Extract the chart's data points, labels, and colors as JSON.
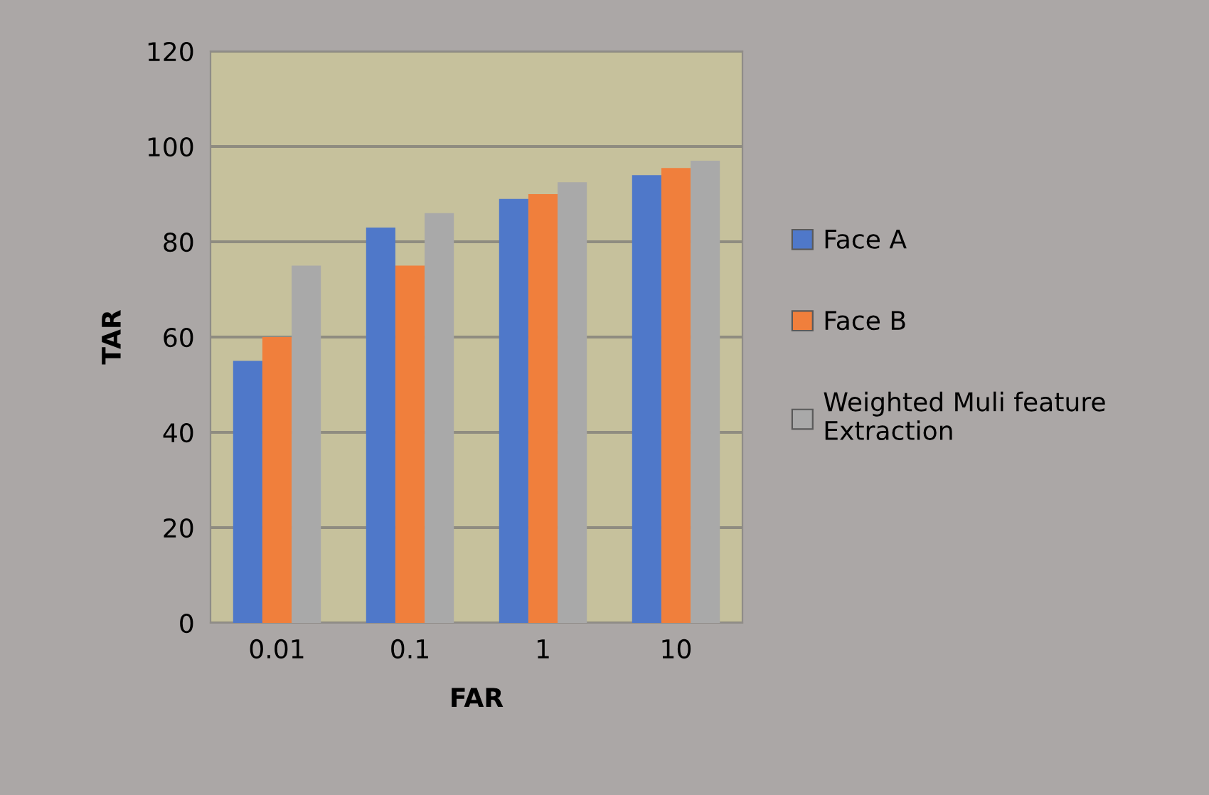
{
  "chart_data": {
    "type": "bar",
    "xlabel": "FAR",
    "ylabel": "TAR",
    "categories": [
      "0.01",
      "0.1",
      "1",
      "10"
    ],
    "series": [
      {
        "name": "Face A",
        "color": "#4f78c9",
        "values": [
          55,
          83,
          89,
          94
        ]
      },
      {
        "name": "Face B",
        "color": "#f07f3c",
        "values": [
          60,
          75,
          90,
          95.5
        ]
      },
      {
        "name": "Weighted Muli feature Extraction",
        "color": "#a9a9a9",
        "values": [
          75,
          86,
          92.5,
          97
        ]
      }
    ],
    "ylim": [
      0,
      120
    ],
    "yticks": [
      0,
      20,
      40,
      60,
      80,
      100,
      120
    ],
    "grid": "y",
    "legend": "right"
  }
}
